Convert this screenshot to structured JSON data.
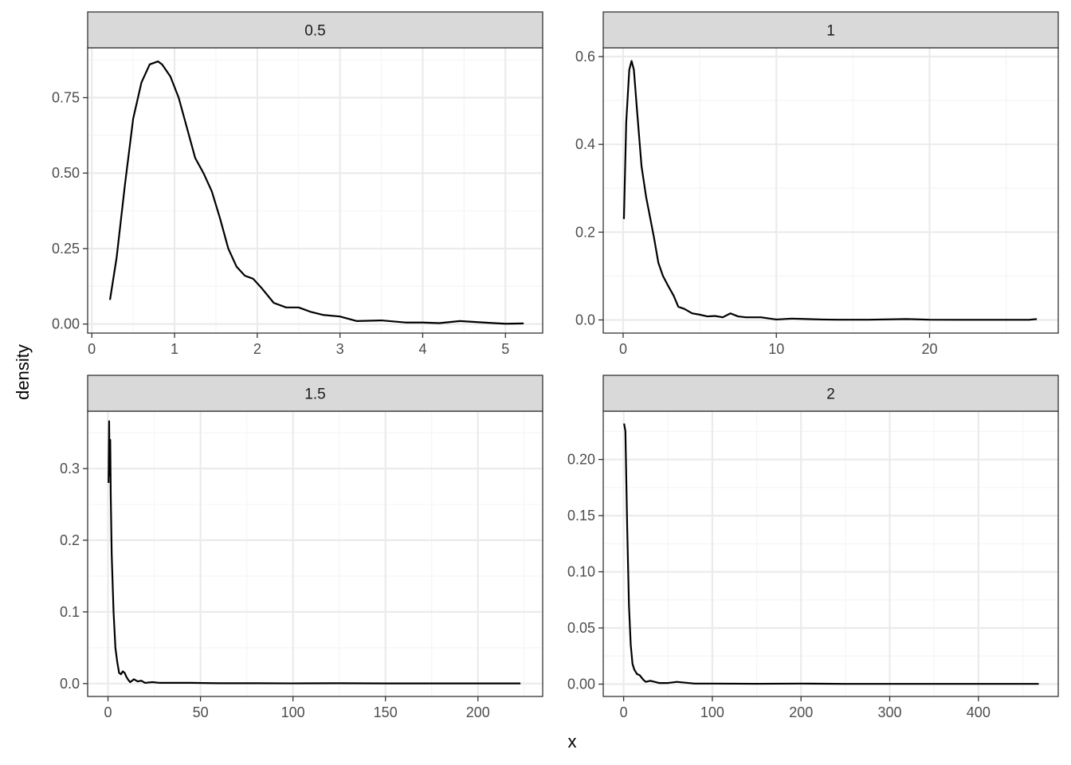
{
  "colors": {
    "strip_fill": "#d9d9d9",
    "strip_border": "#333333",
    "panel_border": "#333333",
    "grid_major": "#ebebeb",
    "grid_minor": "#f5f5f5",
    "line": "#000000",
    "background": "#ffffff"
  },
  "chart_data": {
    "type": "line",
    "title": "",
    "xlabel": "x",
    "ylabel": "density",
    "grid": true,
    "facets": [
      {
        "strip": "0.5",
        "xlim": [
          -0.05,
          5.45
        ],
        "ylim": [
          -0.03,
          0.915
        ],
        "x_ticks": [
          0,
          1,
          2,
          3,
          4,
          5
        ],
        "x_tick_labels": [
          "0",
          "1",
          "2",
          "3",
          "4",
          "5"
        ],
        "y_ticks": [
          0,
          0.25,
          0.5,
          0.75
        ],
        "y_tick_labels": [
          "0.00",
          "0.25",
          "0.50",
          "0.75"
        ],
        "x": [
          0.22,
          0.3,
          0.4,
          0.5,
          0.6,
          0.7,
          0.8,
          0.85,
          0.95,
          1.05,
          1.15,
          1.25,
          1.35,
          1.45,
          1.55,
          1.65,
          1.75,
          1.85,
          1.95,
          2.05,
          2.2,
          2.35,
          2.5,
          2.65,
          2.8,
          3.0,
          3.2,
          3.5,
          3.8,
          4.0,
          4.2,
          4.45,
          4.8,
          5.0,
          5.22
        ],
        "y": [
          0.08,
          0.22,
          0.46,
          0.68,
          0.8,
          0.86,
          0.87,
          0.86,
          0.82,
          0.75,
          0.65,
          0.55,
          0.5,
          0.44,
          0.35,
          0.25,
          0.19,
          0.16,
          0.15,
          0.12,
          0.07,
          0.055,
          0.055,
          0.04,
          0.03,
          0.025,
          0.01,
          0.012,
          0.005,
          0.005,
          0.003,
          0.01,
          0.004,
          0.001,
          0.002
        ]
      },
      {
        "strip": "1",
        "xlim": [
          -1.3,
          28.4
        ],
        "ylim": [
          -0.03,
          0.62
        ],
        "x_ticks": [
          0,
          10,
          20
        ],
        "x_tick_labels": [
          "0",
          "10",
          "20"
        ],
        "y_ticks": [
          0,
          0.2,
          0.4,
          0.6
        ],
        "y_tick_labels": [
          "0.0",
          "0.2",
          "0.4",
          "0.6"
        ],
        "x": [
          0.05,
          0.2,
          0.4,
          0.55,
          0.7,
          0.9,
          1.2,
          1.5,
          2.0,
          2.3,
          2.6,
          2.9,
          3.3,
          3.6,
          4.0,
          4.5,
          5.0,
          5.5,
          6.0,
          6.5,
          7.0,
          7.5,
          8.0,
          9.0,
          10.0,
          11.0,
          12.0,
          13.0,
          14.0,
          16.0,
          18.5,
          20.0,
          22.0,
          25.0,
          26.5,
          27.0
        ],
        "y": [
          0.23,
          0.45,
          0.57,
          0.59,
          0.57,
          0.48,
          0.35,
          0.28,
          0.19,
          0.13,
          0.1,
          0.08,
          0.055,
          0.03,
          0.025,
          0.015,
          0.012,
          0.008,
          0.009,
          0.006,
          0.015,
          0.008,
          0.006,
          0.006,
          0.001,
          0.003,
          0.002,
          0.001,
          0.0005,
          0.0005,
          0.002,
          0.0005,
          0.0003,
          0.0003,
          0.0003,
          0.002
        ]
      },
      {
        "strip": "1.5",
        "xlim": [
          -11,
          235
        ],
        "ylim": [
          -0.018,
          0.38
        ],
        "x_ticks": [
          0,
          50,
          100,
          150,
          200
        ],
        "x_tick_labels": [
          "0",
          "50",
          "100",
          "150",
          "200"
        ],
        "y_ticks": [
          0,
          0.1,
          0.2,
          0.3
        ],
        "y_tick_labels": [
          "0.0",
          "0.1",
          "0.2",
          "0.3"
        ],
        "x": [
          0.3,
          0.6,
          0.9,
          1.2,
          1.5,
          2.0,
          3.0,
          4.0,
          5.0,
          6.0,
          7.0,
          8.0,
          9.0,
          10.0,
          11.0,
          12.0,
          13.0,
          14.0,
          16.0,
          18.0,
          20.0,
          24.0,
          28.0,
          35.0,
          45.0,
          60.0,
          80.0,
          100.0,
          125.0,
          150.0,
          180.0,
          200.0,
          223.0
        ],
        "y": [
          0.28,
          0.366,
          0.29,
          0.34,
          0.26,
          0.18,
          0.1,
          0.05,
          0.03,
          0.015,
          0.013,
          0.017,
          0.015,
          0.009,
          0.005,
          0.002,
          0.004,
          0.006,
          0.003,
          0.004,
          0.001,
          0.002,
          0.001,
          0.001,
          0.001,
          0.0005,
          0.0005,
          0.0003,
          0.0005,
          0.0002,
          0.0002,
          0.0002,
          0.0002
        ]
      },
      {
        "strip": "2",
        "xlim": [
          -23,
          490
        ],
        "ylim": [
          -0.011,
          0.243
        ],
        "x_ticks": [
          0,
          100,
          200,
          300,
          400
        ],
        "x_tick_labels": [
          "0",
          "100",
          "200",
          "300",
          "400"
        ],
        "y_ticks": [
          0,
          0.05,
          0.1,
          0.15,
          0.2
        ],
        "y_tick_labels": [
          "0.00",
          "0.05",
          "0.10",
          "0.15",
          "0.20"
        ],
        "x": [
          0.5,
          2.0,
          4.0,
          6.0,
          8.0,
          10.0,
          12.0,
          15.0,
          18.0,
          22.0,
          25.0,
          30.0,
          35.0,
          40.0,
          50.0,
          60.0,
          80.0,
          100.0,
          150.0,
          200.0,
          250.0,
          300.0,
          350.0,
          400.0,
          450.0,
          468.0
        ],
        "y": [
          0.232,
          0.225,
          0.14,
          0.07,
          0.035,
          0.018,
          0.013,
          0.009,
          0.008,
          0.004,
          0.002,
          0.003,
          0.002,
          0.001,
          0.001,
          0.002,
          0.0005,
          0.0005,
          0.0003,
          0.0005,
          0.0002,
          0.0002,
          0.0002,
          0.0002,
          0.0002,
          0.0002
        ]
      }
    ]
  }
}
